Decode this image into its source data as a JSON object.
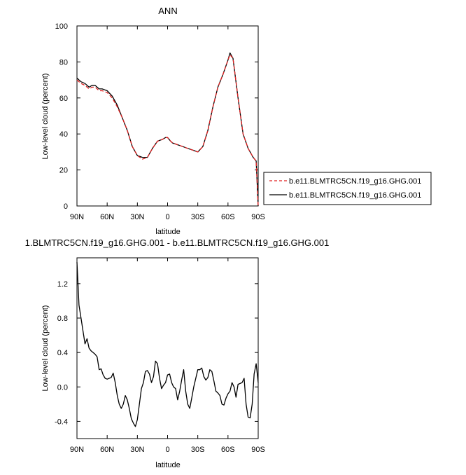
{
  "chart_data": [
    {
      "type": "line",
      "title": "ANN",
      "xlabel": "latitude",
      "ylabel": "Low-level cloud (percent)",
      "xlim": [
        90,
        -90
      ],
      "ylim": [
        0,
        100
      ],
      "xticks": [
        90,
        60,
        30,
        0,
        -30,
        -60,
        -90
      ],
      "xtick_labels": [
        "90N",
        "60N",
        "30N",
        "0",
        "30S",
        "60S",
        "90S"
      ],
      "yticks": [
        0,
        20,
        40,
        60,
        80,
        100
      ],
      "ytick_labels": [
        "0",
        "20",
        "40",
        "60",
        "80",
        "100"
      ],
      "grid": false,
      "legend_position": "right",
      "series": [
        {
          "name": "b.e11.BLMTRC5CN.f19_g16.GHG.001",
          "color": "#e02020",
          "style": "dashed",
          "x": [
            90,
            86,
            82,
            78,
            75,
            72,
            70,
            68,
            65,
            60,
            55,
            50,
            45,
            40,
            35,
            30,
            25,
            20,
            15,
            10,
            5,
            2,
            0,
            -3,
            -5,
            -10,
            -15,
            -20,
            -25,
            -30,
            -35,
            -40,
            -45,
            -50,
            -55,
            -60,
            -62,
            -65,
            -70,
            -75,
            -80,
            -85,
            -88,
            -90
          ],
          "y": [
            70,
            68,
            67,
            65,
            66,
            66,
            65,
            64,
            64,
            63,
            60,
            55,
            49,
            42,
            33,
            28,
            26,
            27,
            32,
            36,
            37,
            38,
            38,
            36,
            35,
            34,
            33,
            32,
            31,
            30,
            33,
            42,
            55,
            66,
            73,
            81,
            84,
            82,
            60,
            40,
            32,
            27,
            25,
            0
          ]
        },
        {
          "name": "b.e11.BLMTRC5CN.f19_g16.GHG.001",
          "color": "#000000",
          "style": "solid",
          "x": [
            90,
            86,
            82,
            78,
            75,
            72,
            70,
            68,
            65,
            60,
            55,
            50,
            45,
            40,
            35,
            30,
            25,
            20,
            15,
            10,
            5,
            2,
            0,
            -3,
            -5,
            -10,
            -15,
            -20,
            -25,
            -30,
            -35,
            -40,
            -45,
            -50,
            -55,
            -60,
            -62,
            -65,
            -70,
            -75,
            -80,
            -85,
            -88,
            -90
          ],
          "y": [
            71,
            69,
            68,
            66,
            67,
            67,
            66,
            65,
            65,
            64,
            61,
            56,
            49,
            42,
            33,
            28,
            27,
            27,
            32,
            36,
            37,
            38,
            38,
            36,
            35,
            34,
            33,
            32,
            31,
            30,
            33,
            42,
            55,
            66,
            73,
            81,
            85,
            82,
            60,
            40,
            32,
            27,
            25,
            0
          ]
        }
      ]
    },
    {
      "type": "line",
      "title": "1.BLMTRC5CN.f19_g16.GHG.001 - b.e11.BLMTRC5CN.f19_g16.GHG.001",
      "xlabel": "latitude",
      "ylabel": "Low-level cloud (percent)",
      "xlim": [
        90,
        -90
      ],
      "ylim": [
        -0.6,
        1.5
      ],
      "xticks": [
        90,
        60,
        30,
        0,
        -30,
        -60,
        -90
      ],
      "xtick_labels": [
        "90N",
        "60N",
        "30N",
        "0",
        "30S",
        "60S",
        "90S"
      ],
      "yticks": [
        -0.4,
        0.0,
        0.4,
        0.8,
        1.2
      ],
      "ytick_labels": [
        "-0.4",
        "0.0",
        "0.4",
        "0.8",
        "1.2"
      ],
      "grid": false,
      "series": [
        {
          "color": "#000000",
          "style": "solid",
          "x": [
            90,
            88,
            86,
            84,
            82,
            80,
            78,
            76,
            74,
            72,
            70,
            68,
            66,
            64,
            62,
            60,
            58,
            56,
            54,
            52,
            50,
            48,
            46,
            44,
            42,
            40,
            38,
            36,
            34,
            32,
            30,
            28,
            26,
            24,
            22,
            20,
            18,
            16,
            14,
            12,
            10,
            8,
            6,
            4,
            2,
            0,
            -2,
            -4,
            -6,
            -8,
            -10,
            -12,
            -14,
            -16,
            -18,
            -20,
            -22,
            -24,
            -26,
            -28,
            -30,
            -32,
            -34,
            -36,
            -38,
            -40,
            -42,
            -44,
            -46,
            -48,
            -50,
            -52,
            -54,
            -56,
            -58,
            -60,
            -62,
            -64,
            -66,
            -68,
            -70,
            -72,
            -74,
            -76,
            -78,
            -80,
            -82,
            -84,
            -86,
            -88,
            -90
          ],
          "y": [
            1.45,
            0.95,
            0.8,
            0.65,
            0.5,
            0.56,
            0.45,
            0.42,
            0.4,
            0.38,
            0.35,
            0.2,
            0.21,
            0.14,
            0.1,
            0.09,
            0.1,
            0.11,
            0.16,
            0.05,
            -0.1,
            -0.2,
            -0.25,
            -0.2,
            -0.1,
            -0.15,
            -0.25,
            -0.37,
            -0.42,
            -0.46,
            -0.38,
            -0.2,
            -0.02,
            0.05,
            0.18,
            0.19,
            0.15,
            0.05,
            0.12,
            0.3,
            0.27,
            0.1,
            -0.02,
            0.02,
            0.05,
            0.14,
            0.15,
            0.05,
            0.0,
            -0.02,
            -0.15,
            -0.05,
            0.08,
            0.2,
            -0.05,
            -0.2,
            -0.25,
            -0.13,
            0.0,
            0.1,
            0.2,
            0.2,
            0.22,
            0.12,
            0.08,
            0.11,
            0.2,
            0.18,
            0.07,
            -0.05,
            -0.07,
            -0.1,
            -0.2,
            -0.21,
            -0.13,
            -0.08,
            -0.05,
            0.05,
            0.0,
            -0.12,
            0.03,
            0.04,
            0.05,
            0.1,
            -0.2,
            -0.35,
            -0.36,
            -0.2,
            0.15,
            0.27,
            0.05
          ]
        }
      ]
    }
  ]
}
